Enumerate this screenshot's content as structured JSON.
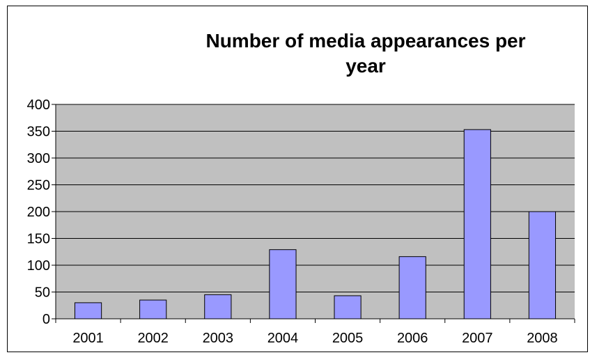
{
  "chart_data": {
    "type": "bar",
    "title_lines": [
      "Number of media appearances per",
      "year"
    ],
    "categories": [
      "2001",
      "2002",
      "2003",
      "2004",
      "2005",
      "2006",
      "2007",
      "2008"
    ],
    "values": [
      30,
      35,
      45,
      129,
      43,
      116,
      353,
      200
    ],
    "ylim": [
      0,
      400
    ],
    "yticks": [
      0,
      50,
      100,
      150,
      200,
      250,
      300,
      350,
      400
    ],
    "xlabel": "",
    "ylabel": "",
    "grid": true,
    "legend": "none",
    "colors": {
      "bar_fill": "#9999ff",
      "bar_stroke": "#000000",
      "plot_background": "#c0c0c0",
      "gridline": "#000000",
      "text": "#000000"
    }
  }
}
